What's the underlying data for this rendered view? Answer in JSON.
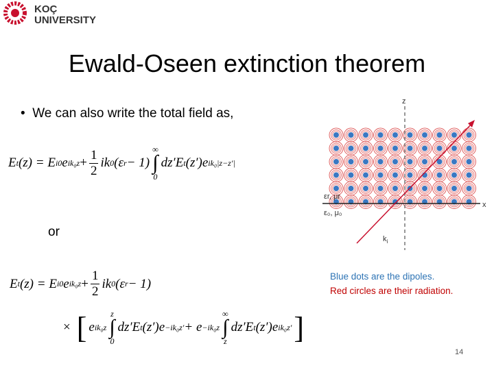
{
  "logo": {
    "line1": "KOÇ",
    "line2": "UNIVERSITY"
  },
  "title": "Ewald-Oseen extinction theorem",
  "bullet": "We can also write the total field as,",
  "or": "or",
  "equations": [
    [
      "E",
      "t",
      "(z) = E",
      "i0",
      "e",
      "ik₀z",
      " + ",
      "1",
      "2",
      "ik",
      "0",
      "(ε",
      "r",
      " − 1)",
      "∫",
      "∞",
      "0",
      "dz′E",
      "t",
      "(z′)e",
      "ik₀|z−z′|"
    ],
    [
      "E",
      "t",
      "(z) = E",
      "i0",
      "e",
      "ik₀z",
      " + ",
      "1",
      "2",
      "ik",
      "0",
      "(ε",
      "r",
      " − 1)"
    ],
    [
      "×",
      "[",
      "e",
      "ik₀z",
      "∫",
      "z",
      "0",
      "dz′E",
      "t",
      "(z′)e",
      "−ik₀z′",
      " + e",
      "−ik₀z",
      "∫",
      "∞",
      "z",
      "dz′E",
      "t",
      "(z′)e",
      "ik₀z′",
      "]"
    ]
  ],
  "diagram": {
    "z": "z",
    "x": "x",
    "medium_r": "εr, μr",
    "medium_0": "ε₀, μ₀",
    "k": "k",
    "k_sub": "i"
  },
  "caption": [
    "Blue dots are the dipoles.",
    "Red circles are their radiation."
  ],
  "page_number": "14"
}
